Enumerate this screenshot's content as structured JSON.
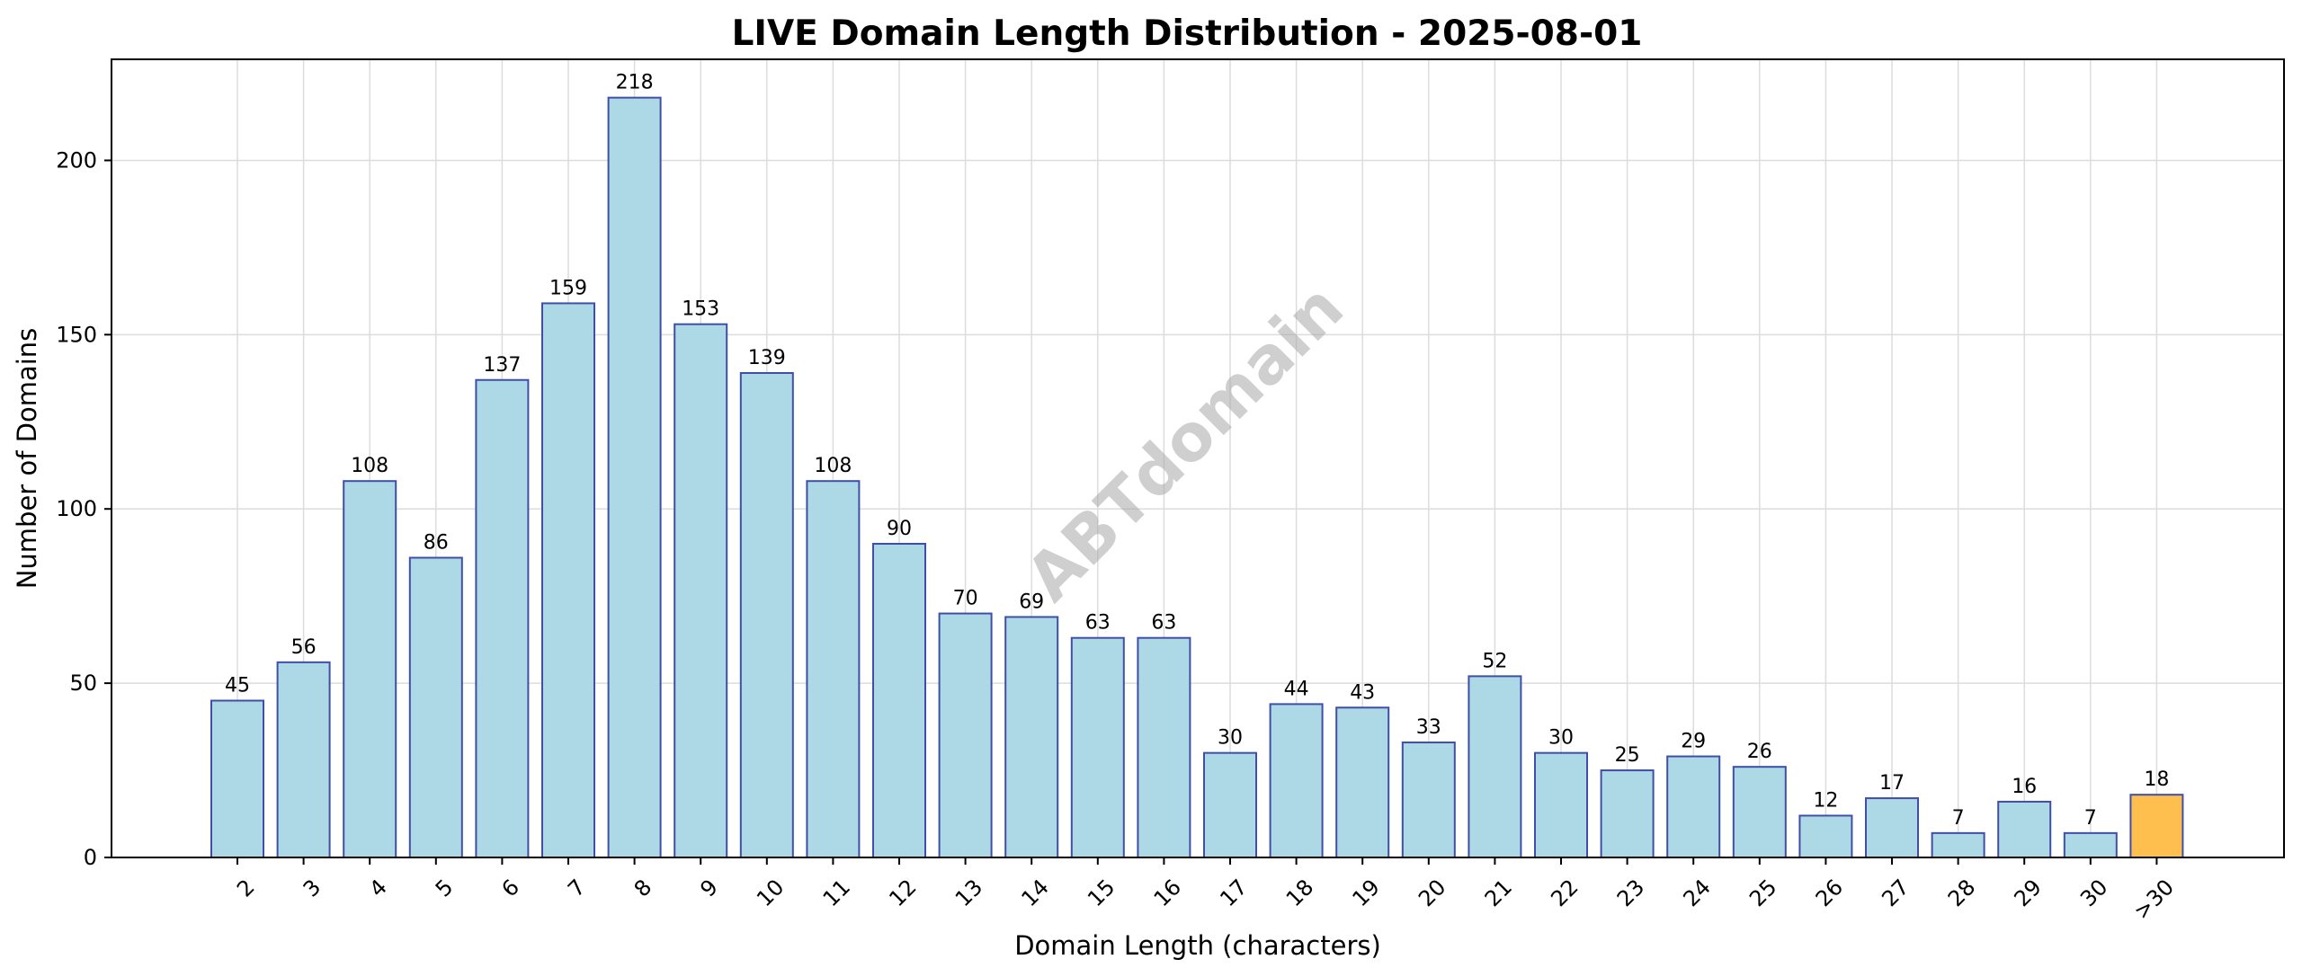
{
  "chart_data": {
    "type": "bar",
    "title": "LIVE Domain Length Distribution - 2025-08-01",
    "xlabel": "Domain Length (characters)",
    "ylabel": "Number of Domains",
    "categories": [
      "2",
      "3",
      "4",
      "5",
      "6",
      "7",
      "8",
      "9",
      "10",
      "11",
      "12",
      "13",
      "14",
      "15",
      "16",
      "17",
      "18",
      "19",
      "20",
      "21",
      "22",
      "23",
      "24",
      "25",
      "26",
      "27",
      "28",
      "29",
      "30",
      ">30"
    ],
    "values": [
      45,
      56,
      108,
      86,
      137,
      159,
      218,
      153,
      139,
      108,
      90,
      70,
      69,
      63,
      63,
      30,
      44,
      43,
      33,
      52,
      30,
      25,
      29,
      26,
      12,
      17,
      7,
      16,
      7,
      18
    ],
    "ylim": [
      0,
      229
    ],
    "yticks": [
      0,
      50,
      100,
      150,
      200
    ],
    "grid": true,
    "bar_color": "#add8e6",
    "bar_edge_color": "#3f4fa8",
    "highlight_color": "#ffbf4f",
    "highlight_category": ">30",
    "watermark": "ABTdomain"
  }
}
